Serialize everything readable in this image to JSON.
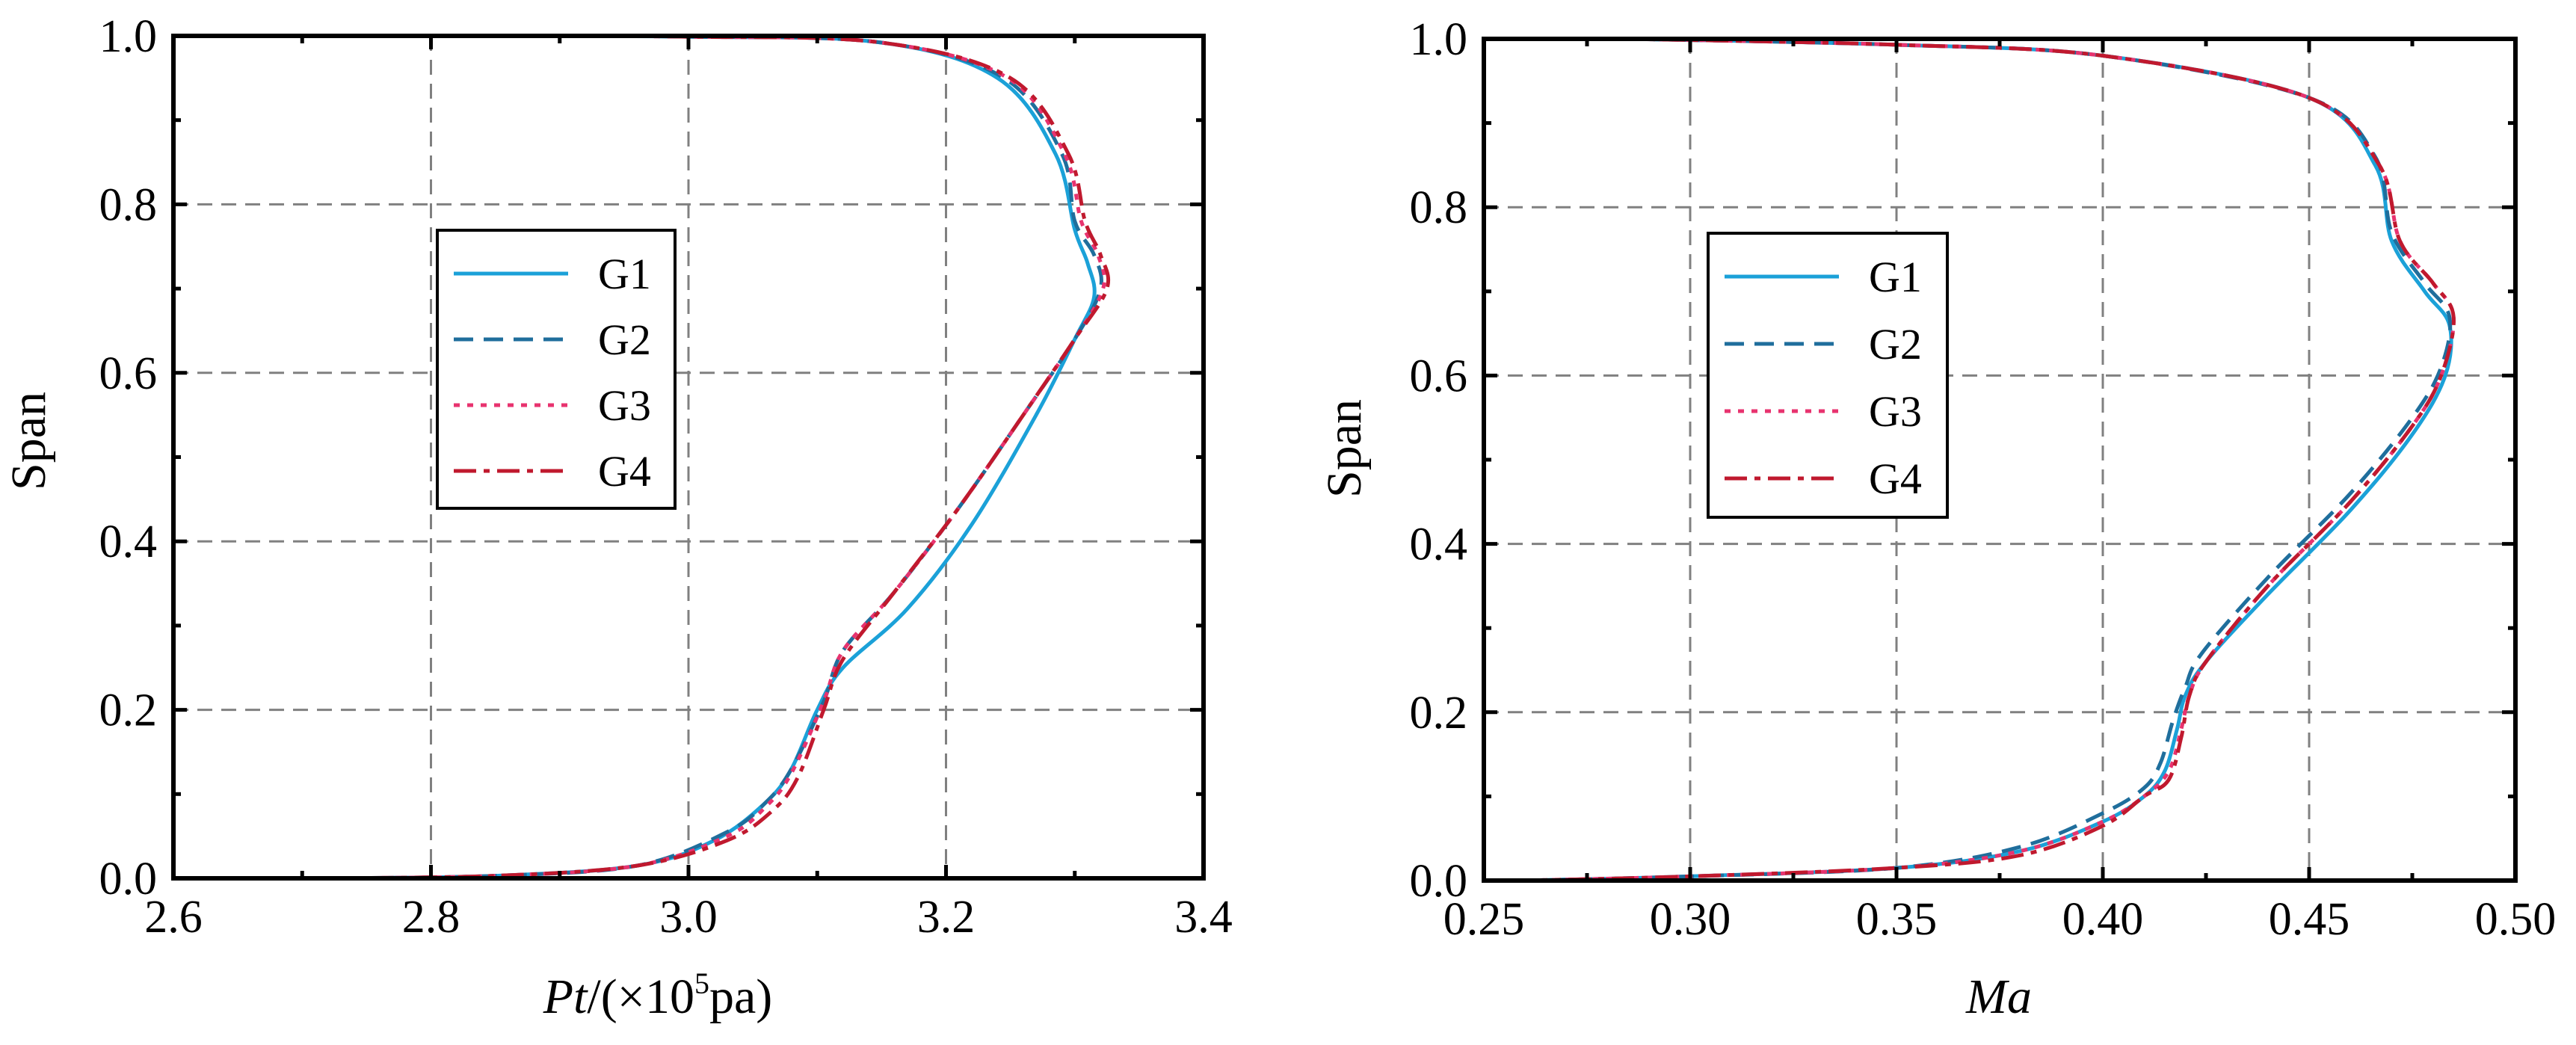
{
  "chart_data": [
    {
      "type": "line",
      "ylabel": "Span",
      "xlabel_main": "Pt",
      "xlabel_unit_pre": "/(×10",
      "xlabel_sup": "5",
      "xlabel_unit_post": "pa)",
      "xlim": [
        2.6,
        3.4
      ],
      "ylim": [
        0.0,
        1.0
      ],
      "x_ticks": [
        "2.6",
        "2.8",
        "3.0",
        "3.2",
        "3.4"
      ],
      "y_ticks": [
        "0.0",
        "0.2",
        "0.4",
        "0.6",
        "0.8",
        "1.0"
      ],
      "grid": true,
      "legend_position": "center-left",
      "series": [
        {
          "name": "G1",
          "color": "#1BA1D8",
          "style": "solid",
          "x": [
            2.72,
            2.85,
            2.96,
            3.02,
            3.06,
            3.08,
            3.1,
            3.12,
            3.17,
            3.22,
            3.27,
            3.3,
            3.315,
            3.31,
            3.3,
            3.285,
            3.24,
            3.15,
            3.0,
            2.81
          ],
          "y": [
            0.0,
            0.003,
            0.015,
            0.045,
            0.09,
            0.13,
            0.2,
            0.25,
            0.32,
            0.42,
            0.55,
            0.64,
            0.69,
            0.73,
            0.77,
            0.86,
            0.95,
            0.992,
            0.999,
            1.0
          ]
        },
        {
          "name": "G2",
          "color": "#1F6E9C",
          "style": "dash",
          "x": [
            2.72,
            2.85,
            2.96,
            3.03,
            3.06,
            3.08,
            3.105,
            3.12,
            3.16,
            3.21,
            3.26,
            3.3,
            3.32,
            3.315,
            3.3,
            3.29,
            3.245,
            3.15,
            3.0,
            2.81
          ],
          "y": [
            0.0,
            0.003,
            0.015,
            0.055,
            0.09,
            0.13,
            0.21,
            0.27,
            0.34,
            0.44,
            0.55,
            0.64,
            0.7,
            0.74,
            0.78,
            0.86,
            0.95,
            0.992,
            0.999,
            1.0
          ]
        },
        {
          "name": "G3",
          "color": "#E8336F",
          "style": "dot",
          "x": [
            2.72,
            2.85,
            2.96,
            3.03,
            3.06,
            3.08,
            3.105,
            3.12,
            3.16,
            3.21,
            3.26,
            3.3,
            3.322,
            3.318,
            3.305,
            3.292,
            3.248,
            3.15,
            3.0,
            2.81
          ],
          "y": [
            0.0,
            0.003,
            0.015,
            0.05,
            0.085,
            0.125,
            0.21,
            0.27,
            0.34,
            0.44,
            0.55,
            0.64,
            0.7,
            0.74,
            0.78,
            0.86,
            0.95,
            0.992,
            0.999,
            1.0
          ]
        },
        {
          "name": "G4",
          "color": "#C0192E",
          "style": "dashdot",
          "x": [
            2.72,
            2.85,
            2.96,
            3.03,
            3.065,
            3.085,
            3.105,
            3.12,
            3.16,
            3.21,
            3.26,
            3.3,
            3.325,
            3.32,
            3.308,
            3.295,
            3.25,
            3.15,
            3.0,
            2.81
          ],
          "y": [
            0.0,
            0.003,
            0.015,
            0.045,
            0.08,
            0.12,
            0.2,
            0.26,
            0.34,
            0.44,
            0.55,
            0.64,
            0.7,
            0.74,
            0.78,
            0.86,
            0.95,
            0.992,
            0.999,
            1.0
          ]
        }
      ]
    },
    {
      "type": "line",
      "ylabel": "Span",
      "xlabel_main": "Ma",
      "xlim": [
        0.25,
        0.5
      ],
      "ylim": [
        0.0,
        1.0
      ],
      "x_ticks": [
        "0.25",
        "0.30",
        "0.35",
        "0.40",
        "0.45",
        "0.50"
      ],
      "y_ticks": [
        "0.0",
        "0.2",
        "0.4",
        "0.6",
        "0.8",
        "1.0"
      ],
      "grid": true,
      "legend_position": "center-left",
      "series": [
        {
          "name": "G1",
          "color": "#1BA1D8",
          "style": "solid",
          "x": [
            0.26,
            0.3,
            0.35,
            0.38,
            0.4,
            0.41,
            0.415,
            0.418,
            0.42,
            0.425,
            0.44,
            0.46,
            0.475,
            0.483,
            0.484,
            0.478,
            0.47,
            0.466,
            0.45,
            0.4,
            0.35,
            0.285
          ],
          "y": [
            0.0,
            0.005,
            0.015,
            0.035,
            0.07,
            0.1,
            0.13,
            0.18,
            0.22,
            0.26,
            0.34,
            0.44,
            0.53,
            0.6,
            0.66,
            0.7,
            0.76,
            0.85,
            0.93,
            0.98,
            0.993,
            1.0
          ]
        },
        {
          "name": "G2",
          "color": "#1F6E9C",
          "style": "dash",
          "x": [
            0.26,
            0.3,
            0.35,
            0.38,
            0.4,
            0.41,
            0.414,
            0.417,
            0.42,
            0.424,
            0.44,
            0.46,
            0.475,
            0.482,
            0.484,
            0.478,
            0.47,
            0.466,
            0.45,
            0.4,
            0.35,
            0.285
          ],
          "y": [
            0.0,
            0.005,
            0.015,
            0.04,
            0.08,
            0.11,
            0.14,
            0.19,
            0.23,
            0.27,
            0.36,
            0.46,
            0.55,
            0.61,
            0.67,
            0.71,
            0.77,
            0.86,
            0.93,
            0.98,
            0.993,
            1.0
          ]
        },
        {
          "name": "G3",
          "color": "#E8336F",
          "style": "dot",
          "x": [
            0.26,
            0.3,
            0.35,
            0.38,
            0.4,
            0.41,
            0.416,
            0.419,
            0.421,
            0.425,
            0.44,
            0.46,
            0.475,
            0.482,
            0.485,
            0.48,
            0.472,
            0.467,
            0.45,
            0.4,
            0.35,
            0.285
          ],
          "y": [
            0.0,
            0.005,
            0.015,
            0.035,
            0.07,
            0.1,
            0.13,
            0.18,
            0.22,
            0.26,
            0.35,
            0.45,
            0.54,
            0.6,
            0.67,
            0.71,
            0.76,
            0.85,
            0.93,
            0.98,
            0.993,
            1.0
          ]
        },
        {
          "name": "G4",
          "color": "#C0192E",
          "style": "dashdot",
          "x": [
            0.26,
            0.3,
            0.35,
            0.38,
            0.4,
            0.41,
            0.416,
            0.419,
            0.421,
            0.425,
            0.44,
            0.46,
            0.475,
            0.482,
            0.485,
            0.48,
            0.472,
            0.467,
            0.45,
            0.4,
            0.35,
            0.285
          ],
          "y": [
            0.0,
            0.005,
            0.015,
            0.03,
            0.065,
            0.1,
            0.12,
            0.17,
            0.22,
            0.26,
            0.35,
            0.45,
            0.54,
            0.6,
            0.67,
            0.71,
            0.76,
            0.85,
            0.93,
            0.98,
            0.993,
            1.0
          ]
        }
      ]
    }
  ]
}
